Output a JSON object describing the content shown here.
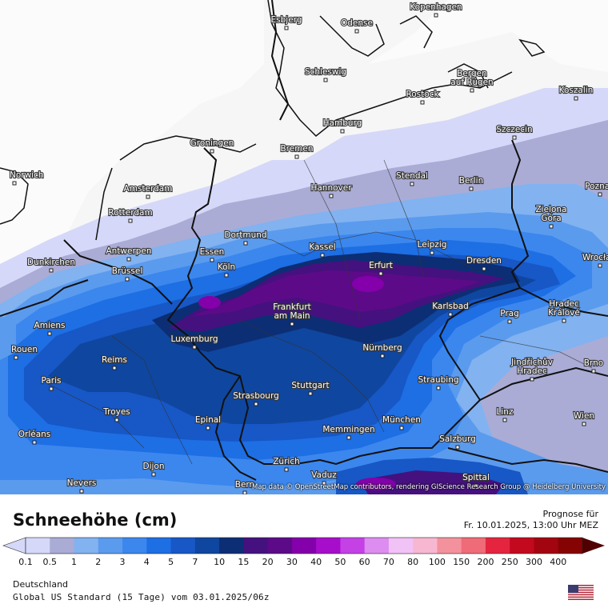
{
  "legend": {
    "title": "Schneehöhe (cm)",
    "forecast_label": "Prognose für",
    "forecast_time": "Fr. 10.01.2025, 13:00 Uhr MEZ",
    "region": "Deutschland",
    "model": "Global US Standard (15 Tage) vom  03.01.2025/06z",
    "ticks": [
      "0.1",
      "0.5",
      "1",
      "2",
      "3",
      "4",
      "5",
      "7",
      "10",
      "15",
      "20",
      "30",
      "40",
      "50",
      "60",
      "70",
      "80",
      "100",
      "150",
      "200",
      "250",
      "300",
      "400"
    ],
    "colors": [
      "#d5d8f8",
      "#aaacd6",
      "#82b2f0",
      "#5b9bee",
      "#3b87ee",
      "#1e6ee4",
      "#1757c6",
      "#0f469f",
      "#0c2e74",
      "#45117f",
      "#5d0a89",
      "#8400aa",
      "#a60ecb",
      "#c441e6",
      "#dd8cef",
      "#f1c2f6",
      "#f7b7d1",
      "#f3919c",
      "#ef6b78",
      "#e5243f",
      "#c3091d",
      "#a2050f",
      "#860304",
      "#500000"
    ]
  },
  "attribution": "Map data © OpenStreetMap contributors, rendering GIScience Research Group @ Heidelberg University",
  "flag_icon": "us-flag-icon",
  "cities": [
    {
      "name": "Kopenhagen"
    },
    {
      "name": "Esbjerg"
    },
    {
      "name": "Odense"
    },
    {
      "name": "Schleswig"
    },
    {
      "name": "Bergen auf Rügen"
    },
    {
      "name": "Rostock"
    },
    {
      "name": "Koszalin"
    },
    {
      "name": "Hamburg"
    },
    {
      "name": "Szczecin"
    },
    {
      "name": "Groningen"
    },
    {
      "name": "Bremen"
    },
    {
      "name": "Norwich"
    },
    {
      "name": "Amsterdam"
    },
    {
      "name": "Hannover"
    },
    {
      "name": "Stendal"
    },
    {
      "name": "Berlin"
    },
    {
      "name": "Rotterdam"
    },
    {
      "name": "Zielona Góra"
    },
    {
      "name": "Dortmund"
    },
    {
      "name": "Antwerpen"
    },
    {
      "name": "Essen"
    },
    {
      "name": "Kassel"
    },
    {
      "name": "Leipzig"
    },
    {
      "name": "Dunkirchen"
    },
    {
      "name": "Köln"
    },
    {
      "name": "Erfurt"
    },
    {
      "name": "Dresden"
    },
    {
      "name": "Brüssel"
    },
    {
      "name": "Frankfurt am Main"
    },
    {
      "name": "Karlsbad"
    },
    {
      "name": "Hradec Králové"
    },
    {
      "name": "Amiens"
    },
    {
      "name": "Prag"
    },
    {
      "name": "Luxemburg"
    },
    {
      "name": "Nürnberg"
    },
    {
      "name": "Reims"
    },
    {
      "name": "Jindřichův Hradec"
    },
    {
      "name": "Brno"
    },
    {
      "name": "Paris"
    },
    {
      "name": "Stuttgart"
    },
    {
      "name": "Straubing"
    },
    {
      "name": "Strasbourg"
    },
    {
      "name": "Troyes"
    },
    {
      "name": "Epinal"
    },
    {
      "name": "Linz"
    },
    {
      "name": "München"
    },
    {
      "name": "Wien"
    },
    {
      "name": "Orléans"
    },
    {
      "name": "Memmingen"
    },
    {
      "name": "Salzburg"
    },
    {
      "name": "Zürich"
    },
    {
      "name": "Dijon"
    },
    {
      "name": "Vaduz"
    },
    {
      "name": "Nevers"
    },
    {
      "name": "Bern"
    },
    {
      "name": "Spittal"
    },
    {
      "name": "Rouen"
    },
    {
      "name": "Wrocław"
    },
    {
      "name": "Poznań"
    }
  ]
}
